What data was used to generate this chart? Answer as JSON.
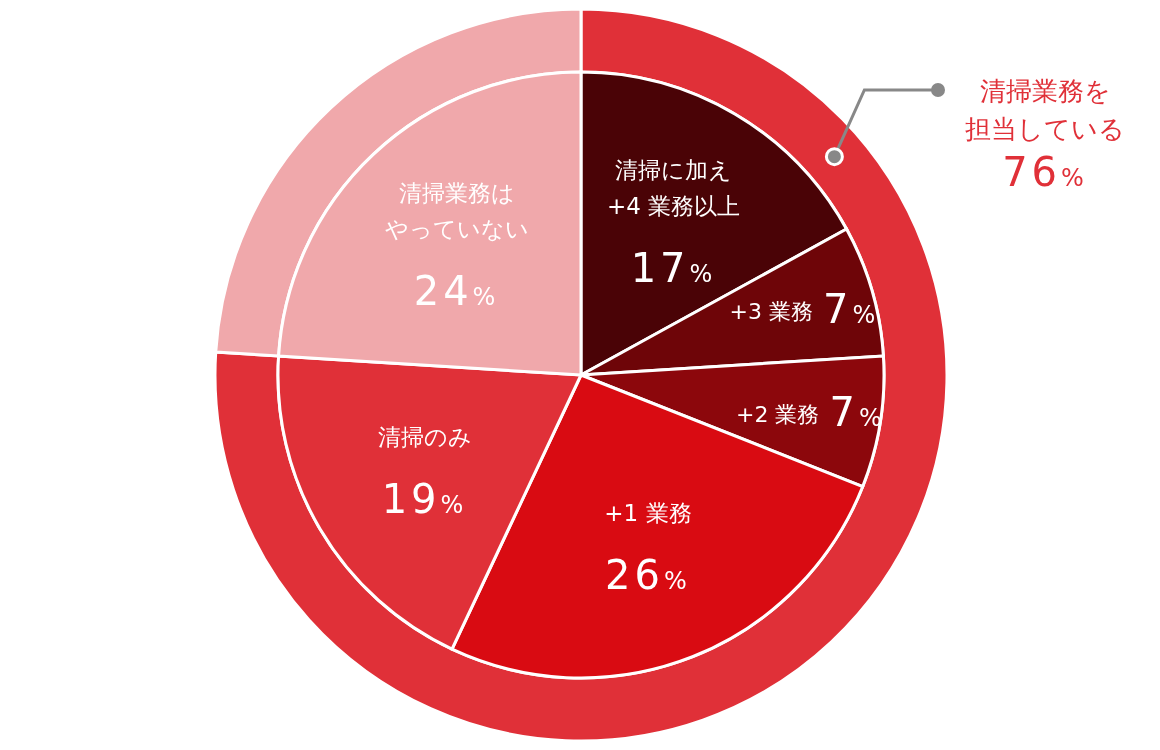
{
  "chart_data": [
    {
      "type": "donut",
      "categories": [
        "清掃業務を担当している",
        null
      ],
      "values": [
        76,
        24
      ],
      "colors": [
        "#e03038",
        "#f0a8ab"
      ],
      "value_labels": [
        "76%",
        null
      ]
    },
    {
      "type": "pie",
      "categories": [
        "清掃に加え+4 業務以上",
        "+3 業務",
        "+2 業務",
        "+1 業務",
        "清掃のみ",
        "清掃業務はやっていない"
      ],
      "values": [
        17,
        7,
        7,
        26,
        19,
        24
      ],
      "colors": [
        "#4a0306",
        "#6e0508",
        "#8c070c",
        "#d90b12",
        "#e03038",
        "#f0a8ab"
      ],
      "value_labels": [
        "17%",
        "7%",
        "7%",
        "26%",
        "19%",
        "24%"
      ]
    }
  ]
}
